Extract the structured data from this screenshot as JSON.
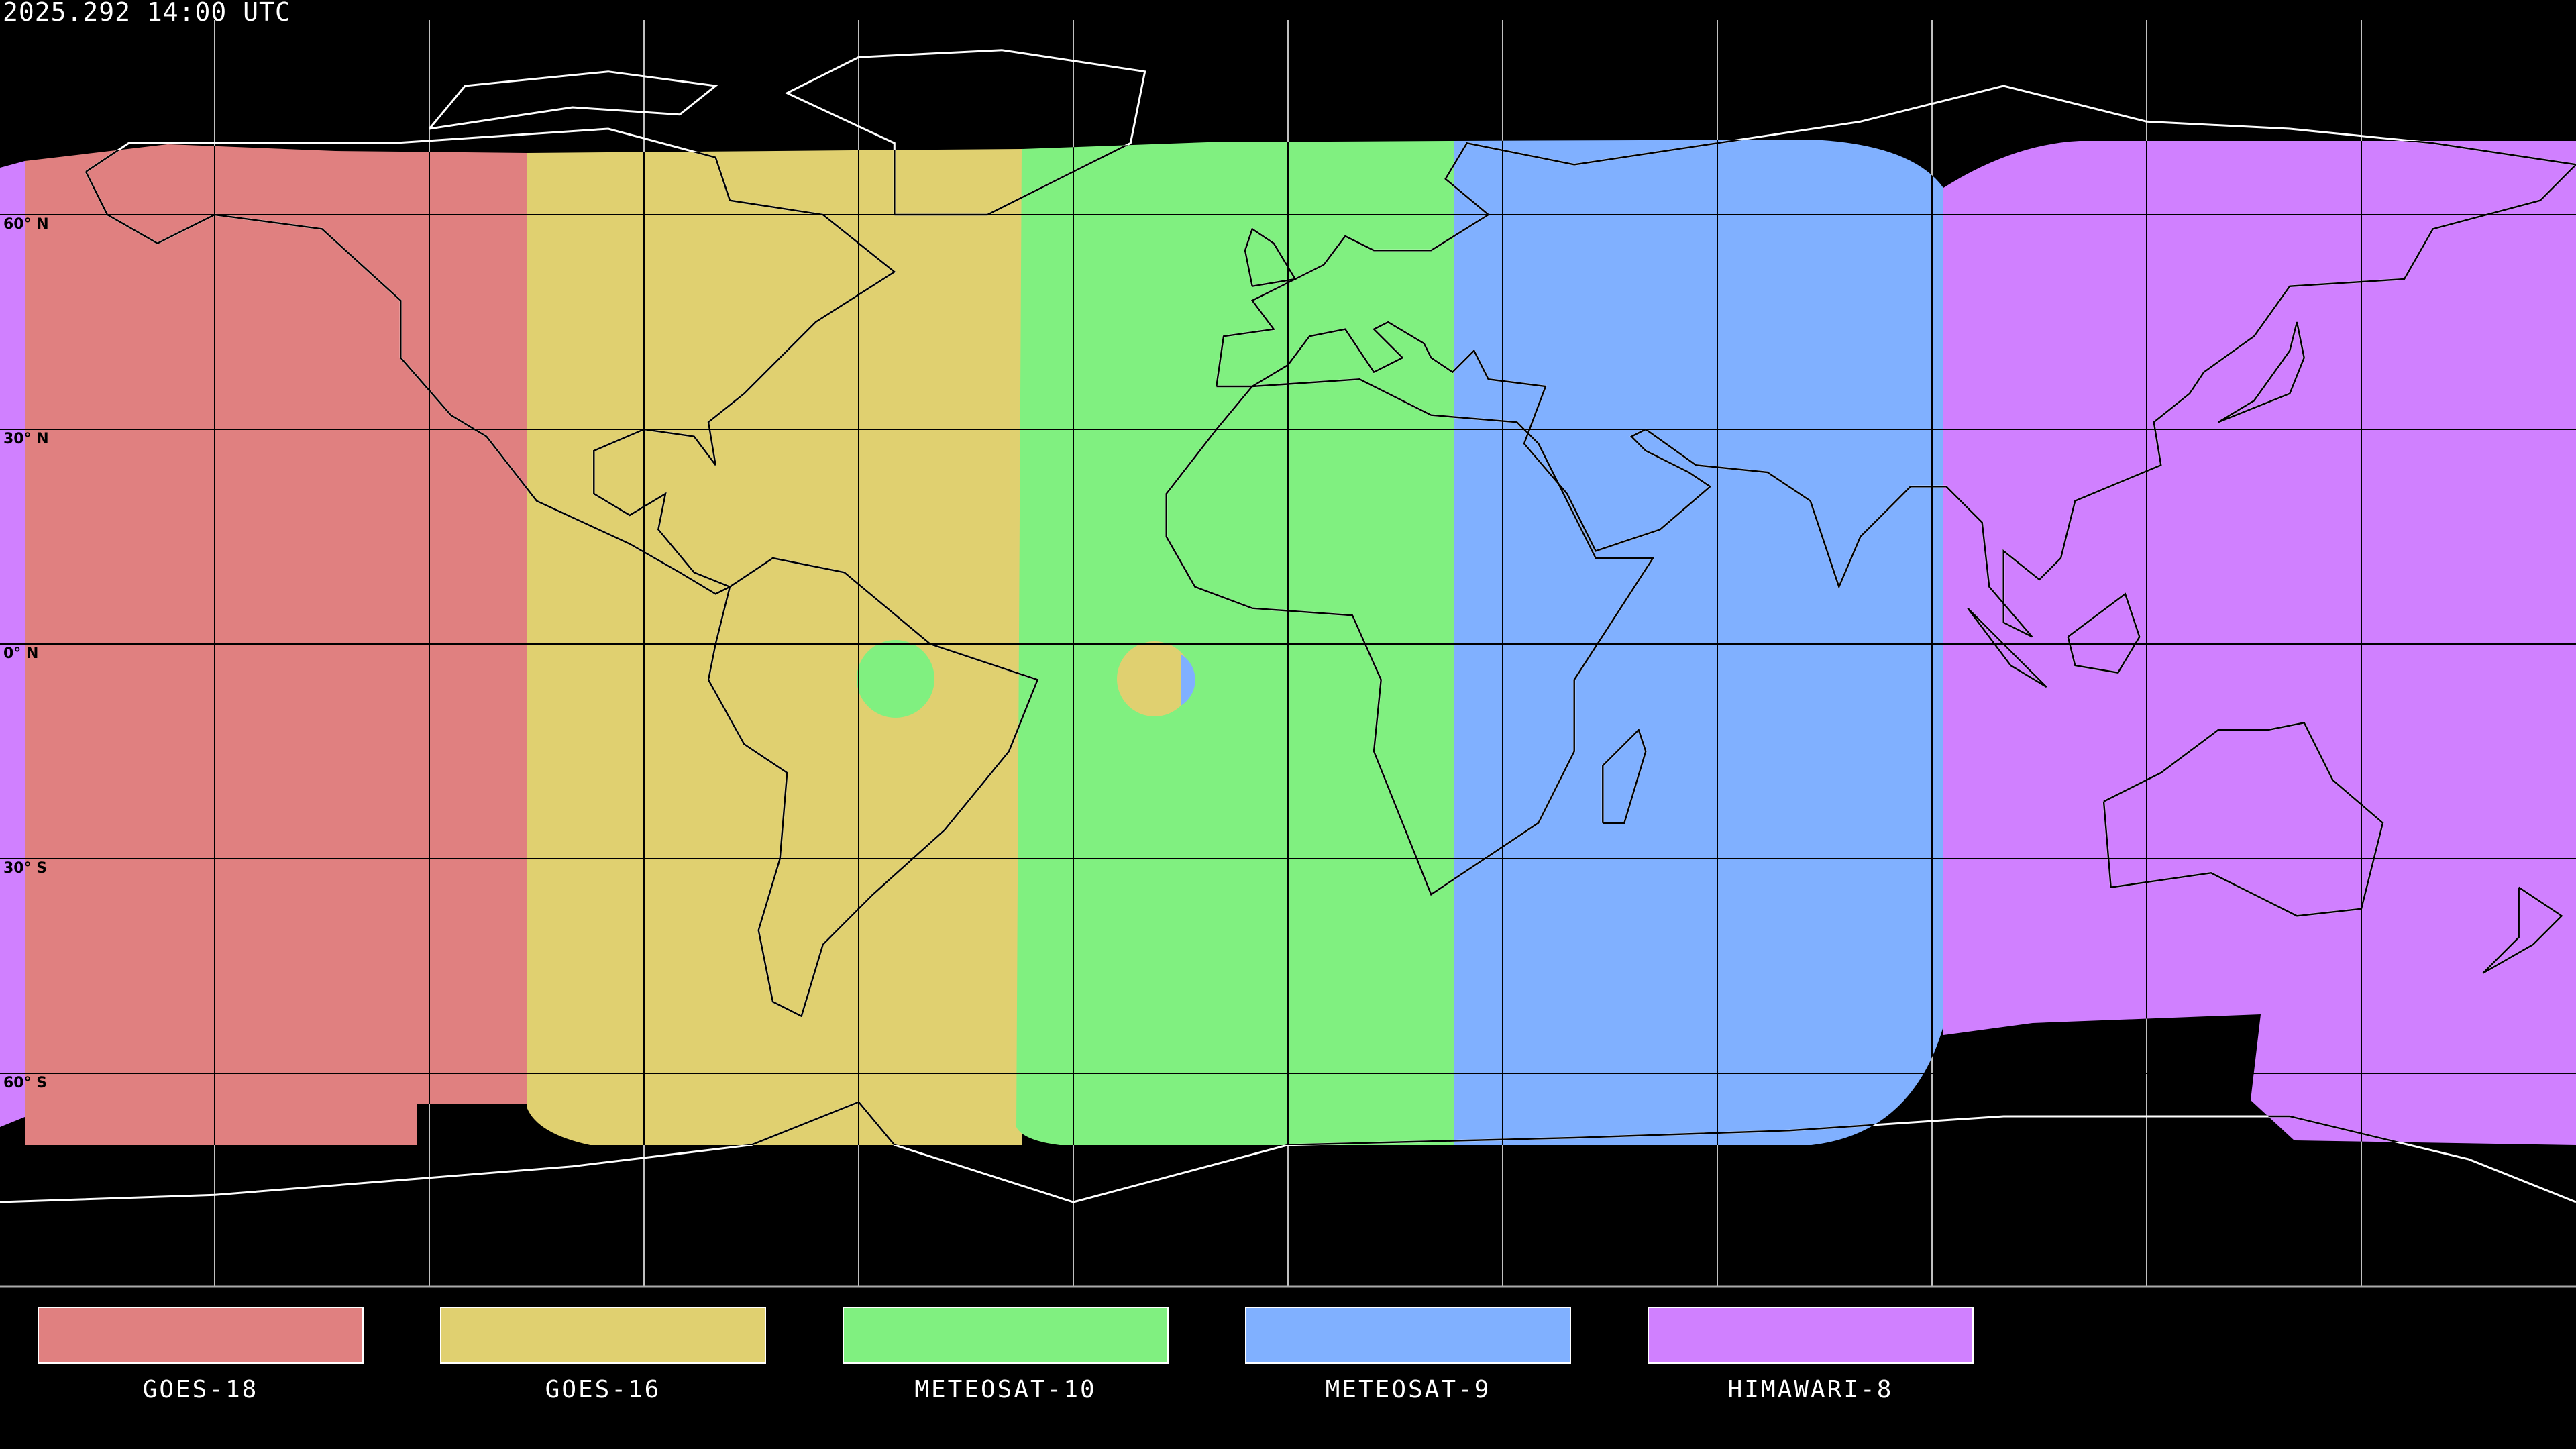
{
  "title": "2025.292 14:00 UTC",
  "latitude_labels": [
    "60° N",
    "30° N",
    "0° N",
    "30° S",
    "60° S"
  ],
  "legend": [
    {
      "name": "GOES-18",
      "color": "#e08080"
    },
    {
      "name": "GOES-16",
      "color": "#e0d070"
    },
    {
      "name": "METEOSAT-10",
      "color": "#80f080"
    },
    {
      "name": "METEOSAT-9",
      "color": "#80b0ff"
    },
    {
      "name": "HIMAWARI-8",
      "color": "#d080ff"
    }
  ],
  "map": {
    "projection": "equirectangular",
    "longitude_range": [
      -180,
      180
    ],
    "latitude_range": [
      -90,
      90
    ],
    "grid_spacing_degrees": 30,
    "background": "#000000"
  }
}
